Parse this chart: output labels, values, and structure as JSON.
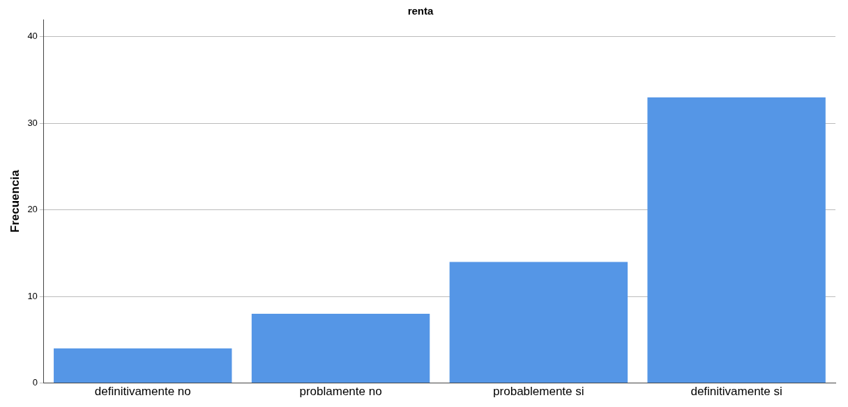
{
  "chart_data": {
    "type": "bar",
    "title": "renta",
    "ylabel": "Frecuencia",
    "categories": [
      "definitivamente no",
      "problamente no",
      "probablemente si",
      "definitivamente si"
    ],
    "values": [
      4,
      8,
      14,
      33
    ],
    "color": "#5596e6",
    "ylim": [
      0,
      42
    ],
    "yticks": [
      0,
      10,
      20,
      30,
      40
    ],
    "grid": "y",
    "legend": false
  }
}
